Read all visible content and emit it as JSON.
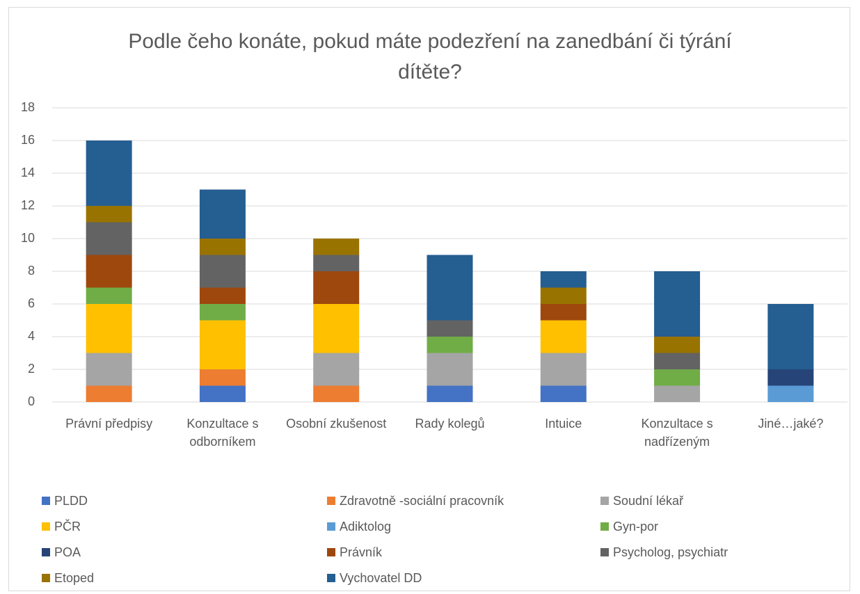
{
  "chart_data": {
    "type": "stacked_bar",
    "title": "Podle čeho konáte, pokud máte podezření na zanedbání či týrání dítěte?",
    "categories": [
      "Právní předpisy",
      "Konzultace s odborníkem",
      "Osobní zkušenost",
      "Rady kolegů",
      "Intuice",
      "Konzultace s nadřízeným",
      "Jiné…jaké?"
    ],
    "series": [
      {
        "name": "PLDD",
        "color": "#4472c4",
        "values": [
          0,
          1,
          0,
          1,
          1,
          0,
          0
        ]
      },
      {
        "name": "Zdravotně -sociální pracovník",
        "color": "#ed7d31",
        "values": [
          1,
          1,
          1,
          0,
          0,
          0,
          0
        ]
      },
      {
        "name": "Soudní lékař",
        "color": "#a5a5a5",
        "values": [
          2,
          0,
          2,
          2,
          2,
          1,
          0
        ]
      },
      {
        "name": "PČR",
        "color": "#ffc000",
        "values": [
          3,
          3,
          3,
          0,
          2,
          0,
          0
        ]
      },
      {
        "name": "Adiktolog",
        "color": "#5b9bd5",
        "values": [
          0,
          0,
          0,
          0,
          0,
          0,
          1
        ]
      },
      {
        "name": "Gyn-por",
        "color": "#70ad47",
        "values": [
          1,
          1,
          0,
          1,
          0,
          1,
          0
        ]
      },
      {
        "name": "POA",
        "color": "#264478",
        "values": [
          0,
          0,
          0,
          0,
          0,
          0,
          1
        ]
      },
      {
        "name": "Právník",
        "color": "#9e480e",
        "values": [
          2,
          1,
          2,
          0,
          1,
          0,
          0
        ]
      },
      {
        "name": "Psycholog, psychiatr",
        "color": "#636363",
        "values": [
          2,
          2,
          1,
          1,
          0,
          1,
          0
        ]
      },
      {
        "name": "Etoped",
        "color": "#997300",
        "values": [
          1,
          1,
          1,
          0,
          1,
          1,
          0
        ]
      },
      {
        "name": "Vychovatel DD",
        "color": "#255e91",
        "values": [
          4,
          3,
          0,
          4,
          1,
          4,
          4
        ]
      }
    ],
    "ylim": [
      0,
      18
    ],
    "yticks": [
      0,
      2,
      4,
      6,
      8,
      10,
      12,
      14,
      16,
      18
    ],
    "grid": true,
    "legend": "bottom"
  }
}
